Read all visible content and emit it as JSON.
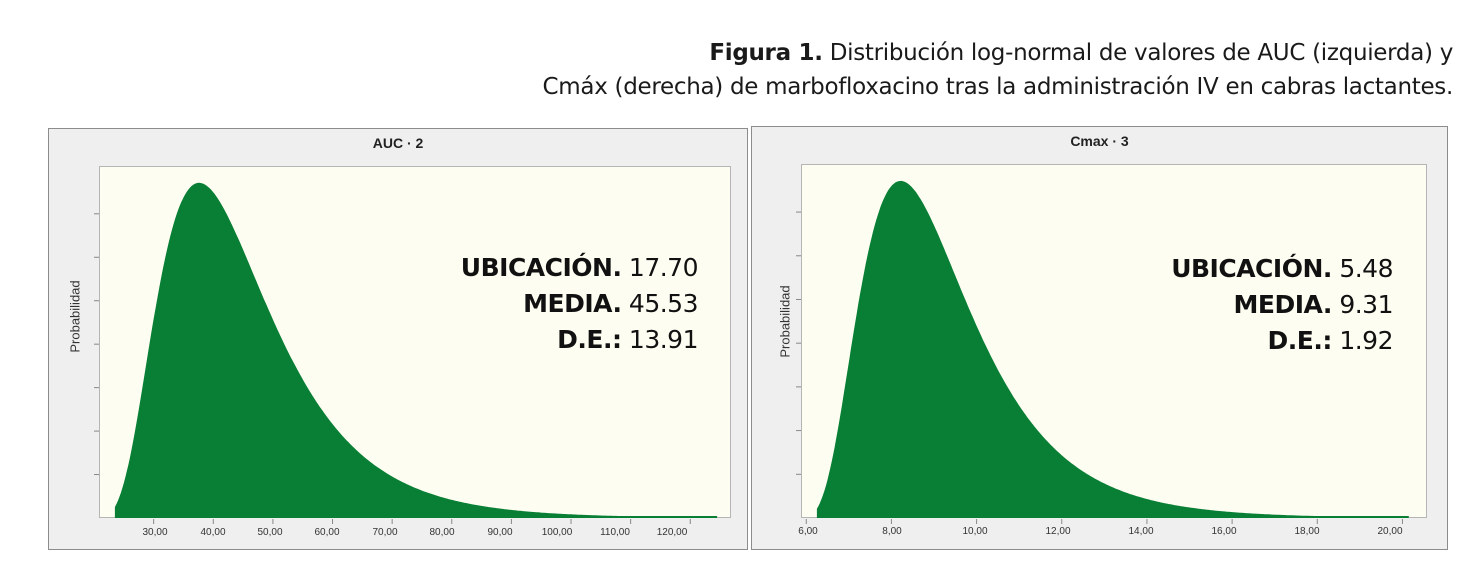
{
  "caption": {
    "label": "Figura 1.",
    "line1": " Distribución log-normal de valores de AUC (izquierda) y",
    "line2": "Cmáx (derecha) de marbofloxacino tras la administración IV en cabras lactantes."
  },
  "colors": {
    "fill": "#087f35",
    "plot_bg": "#fdfdf2",
    "panel_bg": "#efefef"
  },
  "panels": [
    {
      "title": "AUC · 2",
      "ylabel": "Probabilidad",
      "stats": [
        {
          "label": "UBICACIÓN.",
          "value": " 17.70"
        },
        {
          "label": "MEDIA.",
          "value": " 45.53"
        },
        {
          "label": "D.E.:",
          "value": " 13.91"
        }
      ],
      "xticks": [
        "30,00",
        "40,00",
        "50,00",
        "60,00",
        "70,00",
        "80,00",
        "90,00",
        "100,00",
        "110,00",
        "120,00"
      ]
    },
    {
      "title": "Cmax · 3",
      "ylabel": "Probabilidad",
      "stats": [
        {
          "label": "UBICACIÓN.",
          "value": " 5.48"
        },
        {
          "label": "MEDIA.",
          "value": " 9.31"
        },
        {
          "label": "D.E.:",
          "value": " 1.92"
        }
      ],
      "xticks": [
        "6,00",
        "8,00",
        "10,00",
        "12,00",
        "14,00",
        "16,00",
        "18,00",
        "20,00"
      ]
    }
  ],
  "chart_data": [
    {
      "type": "area",
      "title": "AUC · 2",
      "xlabel": "",
      "ylabel": "Probabilidad",
      "distribution": "log-normal",
      "location": 17.7,
      "mean": 45.53,
      "sd": 13.91,
      "x_ticks": [
        30,
        40,
        50,
        60,
        70,
        80,
        90,
        100,
        110,
        120
      ],
      "xlim": [
        21,
        127
      ],
      "x_range_of_fill": [
        23.5,
        124.5
      ],
      "mode_approx": 37.5,
      "y_ticks_labeled": false,
      "grid": false
    },
    {
      "type": "area",
      "title": "Cmax · 3",
      "xlabel": "",
      "ylabel": "Probabilidad",
      "distribution": "log-normal",
      "location": 5.48,
      "mean": 9.31,
      "sd": 1.92,
      "x_ticks": [
        6,
        8,
        10,
        12,
        14,
        16,
        18,
        20
      ],
      "xlim": [
        5.9,
        20.6
      ],
      "x_range_of_fill": [
        6.25,
        20.15
      ],
      "mode_approx": 8.25,
      "y_ticks_labeled": false,
      "grid": false
    }
  ]
}
